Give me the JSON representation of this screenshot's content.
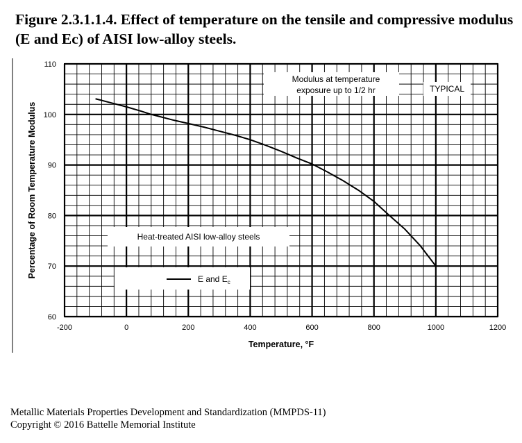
{
  "figure": {
    "title": "Figure 2.3.1.1.4. Effect of temperature on the tensile and compressive modulus (E and Ec) of AISI low-alloy steels."
  },
  "footer": {
    "line1": "Metallic Materials Properties Development and Standardization (MMPDS-11)",
    "line2": "Copyright © 2016 Battelle Memorial Institute"
  },
  "chart_data": {
    "type": "line",
    "xlabel": "Temperature, °F",
    "ylabel": "Percentage of Room Temperature Modulus",
    "xlim": [
      -200,
      1200
    ],
    "ylim": [
      60,
      110
    ],
    "x_ticks": [
      "-200",
      "0",
      "200",
      "400",
      "600",
      "800",
      "1000",
      "1200"
    ],
    "y_ticks": [
      "60",
      "70",
      "80",
      "90",
      "100",
      "110"
    ],
    "grid": true,
    "annotations": {
      "modulus_line1": "Modulus at temperature",
      "modulus_line2": "exposure up to 1/2 hr",
      "typical": "TYPICAL",
      "heat_treated": "Heat-treated AISI low-alloy steels"
    },
    "legend": {
      "placement": "lower-left",
      "entry_main": "E and E",
      "entry_sub": "c"
    },
    "series": [
      {
        "x": [
          -100,
          -50,
          0,
          50,
          80,
          100,
          150,
          200,
          250,
          300,
          350,
          400,
          450,
          500,
          550,
          600,
          650,
          700,
          750,
          800,
          850,
          900,
          950,
          1000
        ],
        "y": [
          103.1,
          102.3,
          101.5,
          100.6,
          100.0,
          99.7,
          98.9,
          98.2,
          97.5,
          96.7,
          95.9,
          95.0,
          93.9,
          92.7,
          91.4,
          90.2,
          88.6,
          86.9,
          85.0,
          82.8,
          80.0,
          77.3,
          74.0,
          70.0
        ]
      }
    ]
  }
}
